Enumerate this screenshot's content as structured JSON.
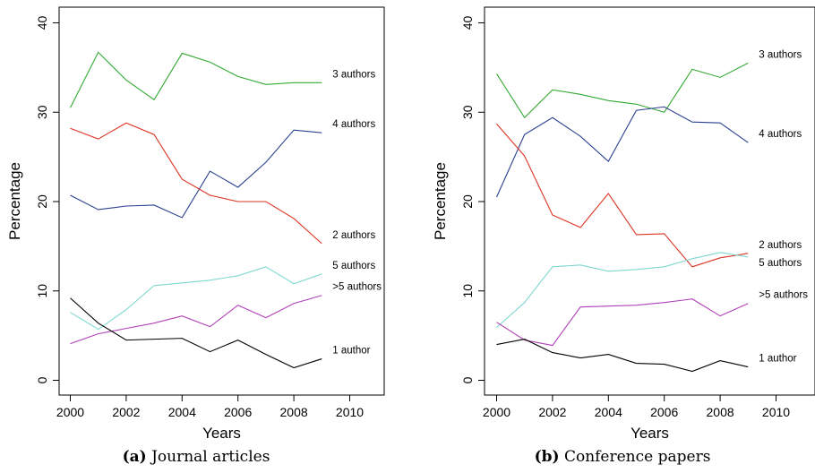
{
  "chart_data": [
    {
      "type": "line",
      "xlabel": "Years",
      "ylabel": "Percentage",
      "xlim": [
        2000,
        2010
      ],
      "ylim": [
        0,
        40
      ],
      "xticks": [
        "2000",
        "2002",
        "2004",
        "2006",
        "2008",
        "2010"
      ],
      "yticks": [
        "0",
        "10",
        "20",
        "30",
        "40"
      ],
      "x": [
        2000,
        2001,
        2002,
        2003,
        2004,
        2005,
        2006,
        2007,
        2008,
        2009
      ],
      "grid": false,
      "caption_prefix": "(a)",
      "caption_text": "Journal articles",
      "series": [
        {
          "name": "3 authors",
          "color": "#33aa33",
          "values": [
            30.5,
            36.7,
            33.6,
            31.4,
            36.6,
            35.6,
            34.0,
            33.1,
            33.3,
            33.3
          ]
        },
        {
          "name": "4 authors",
          "color": "#2b3f8f",
          "values": [
            20.7,
            19.1,
            19.5,
            19.6,
            18.2,
            23.4,
            21.6,
            24.4,
            28.0,
            27.7
          ]
        },
        {
          "name": "2 authors",
          "color": "#dd3322",
          "values": [
            28.2,
            27.0,
            28.8,
            27.5,
            22.5,
            20.7,
            20.0,
            20.0,
            18.1,
            15.3
          ]
        },
        {
          "name": "5 authors",
          "color": "#7fd8d0",
          "values": [
            7.6,
            5.7,
            7.9,
            10.6,
            10.9,
            11.2,
            11.7,
            12.7,
            10.8,
            11.9
          ]
        },
        {
          "name": ">5 authors",
          "color": "#b040b8",
          "values": [
            4.1,
            5.2,
            5.8,
            6.4,
            7.2,
            6.0,
            8.4,
            7.0,
            8.6,
            9.5
          ]
        },
        {
          "name": "1 author",
          "color": "#000000",
          "values": [
            9.2,
            6.4,
            4.5,
            4.6,
            4.7,
            3.2,
            4.5,
            2.9,
            1.4,
            2.4
          ]
        }
      ]
    },
    {
      "type": "line",
      "xlabel": "Years",
      "ylabel": "Percentage",
      "xlim": [
        2000,
        2010
      ],
      "ylim": [
        0,
        40
      ],
      "xticks": [
        "2000",
        "2002",
        "2004",
        "2006",
        "2008",
        "2010"
      ],
      "yticks": [
        "0",
        "10",
        "20",
        "30",
        "40"
      ],
      "x": [
        2000,
        2001,
        2002,
        2003,
        2004,
        2005,
        2006,
        2007,
        2008,
        2009
      ],
      "grid": false,
      "caption_prefix": "(b)",
      "caption_text": "Conference papers",
      "series": [
        {
          "name": "3 authors",
          "color": "#33aa33",
          "values": [
            34.3,
            29.4,
            32.5,
            32.0,
            31.3,
            30.9,
            30.0,
            34.8,
            33.9,
            35.5
          ]
        },
        {
          "name": "4 authors",
          "color": "#2b3f8f",
          "values": [
            20.5,
            27.5,
            29.4,
            27.3,
            24.5,
            30.2,
            30.6,
            28.9,
            28.8,
            26.6
          ]
        },
        {
          "name": "2 authors",
          "color": "#dd3322",
          "values": [
            28.7,
            25.1,
            18.5,
            17.1,
            20.9,
            16.3,
            16.4,
            12.7,
            13.7,
            14.2
          ]
        },
        {
          "name": "5 authors",
          "color": "#7fd8d0",
          "values": [
            5.9,
            8.7,
            12.7,
            12.9,
            12.2,
            12.4,
            12.7,
            13.6,
            14.3,
            13.8
          ]
        },
        {
          "name": ">5 authors",
          "color": "#b040b8",
          "values": [
            6.5,
            4.5,
            3.9,
            8.2,
            8.3,
            8.4,
            8.7,
            9.1,
            7.2,
            8.6
          ]
        },
        {
          "name": "1 author",
          "color": "#000000",
          "values": [
            4.0,
            4.6,
            3.1,
            2.5,
            2.9,
            1.9,
            1.8,
            1.0,
            2.2,
            1.5
          ]
        }
      ]
    }
  ]
}
